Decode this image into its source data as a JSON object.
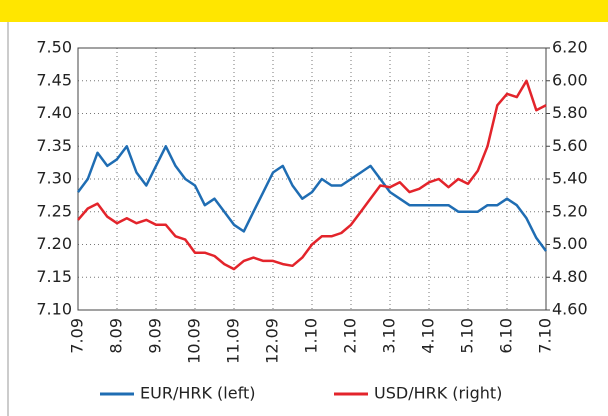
{
  "chart_data": {
    "type": "line",
    "x": [
      0,
      0.25,
      0.5,
      0.75,
      1,
      1.25,
      1.5,
      1.75,
      2,
      2.25,
      2.5,
      2.75,
      3,
      3.25,
      3.5,
      3.75,
      4,
      4.25,
      4.5,
      4.75,
      5,
      5.25,
      5.5,
      5.75,
      6,
      6.25,
      6.5,
      6.75,
      7,
      7.25,
      7.5,
      7.75,
      8,
      8.25,
      8.5,
      8.75,
      9,
      9.25,
      9.5,
      9.75,
      10,
      10.25,
      10.5,
      10.75,
      11,
      11.25,
      11.5,
      11.75,
      12
    ],
    "xlim": [
      0,
      12
    ],
    "xticks": [
      {
        "value": 0,
        "label": "7.09"
      },
      {
        "value": 1,
        "label": "8.09"
      },
      {
        "value": 2,
        "label": "9.09"
      },
      {
        "value": 3,
        "label": "10.09"
      },
      {
        "value": 4,
        "label": "11.09"
      },
      {
        "value": 5,
        "label": "12.09"
      },
      {
        "value": 6,
        "label": "1.10"
      },
      {
        "value": 7,
        "label": "2.10"
      },
      {
        "value": 8,
        "label": "3.10"
      },
      {
        "value": 9,
        "label": "4.10"
      },
      {
        "value": 10,
        "label": "5.10"
      },
      {
        "value": 11,
        "label": "6.10"
      },
      {
        "value": 12,
        "label": "7.10"
      }
    ],
    "ylim": [
      7.1,
      7.5
    ],
    "yticks": [
      {
        "value": 7.1,
        "label": "7.10"
      },
      7.15,
      {
        "value": 7.2,
        "label": "7.20"
      },
      7.25,
      {
        "value": 7.3,
        "label": "7.30"
      },
      7.35,
      {
        "value": 7.4,
        "label": "7.40"
      },
      7.45,
      {
        "value": 7.5,
        "label": "7.50"
      }
    ],
    "y2lim": [
      4.6,
      6.2
    ],
    "y2ticks": [
      {
        "value": 4.6,
        "label": "4.60"
      },
      {
        "value": 4.8,
        "label": "4.80"
      },
      {
        "value": 5.0,
        "label": "5.00"
      },
      {
        "value": 5.2,
        "label": "5.20"
      },
      {
        "value": 5.4,
        "label": "5.40"
      },
      {
        "value": 5.6,
        "label": "5.60"
      },
      {
        "value": 5.8,
        "label": "5.80"
      },
      {
        "value": 6.0,
        "label": "6.00"
      },
      {
        "value": 6.2,
        "label": "6.20"
      }
    ],
    "grid": true,
    "series": [
      {
        "name": "EUR/HRK (left)",
        "color": "#1f6db3",
        "values": [
          7.28,
          7.3,
          7.34,
          7.32,
          7.33,
          7.35,
          7.31,
          7.29,
          7.32,
          7.35,
          7.32,
          7.3,
          7.29,
          7.26,
          7.27,
          7.25,
          7.23,
          7.22,
          7.25,
          7.28,
          7.31,
          7.32,
          7.29,
          7.27,
          7.28,
          7.3,
          7.29,
          7.29,
          7.3,
          7.31,
          7.32,
          7.3,
          7.28,
          7.27,
          7.26,
          7.26,
          7.26,
          7.26,
          7.26,
          7.25,
          7.25,
          7.25,
          7.26,
          7.26,
          7.27,
          7.26,
          7.24,
          7.21,
          7.19
        ]
      },
      {
        "name": "USD/HRK (right)",
        "color": "#e3242b",
        "axis": "y2",
        "values": [
          5.15,
          5.22,
          5.25,
          5.17,
          5.13,
          5.16,
          5.13,
          5.15,
          5.12,
          5.12,
          5.05,
          5.03,
          4.95,
          4.95,
          4.93,
          4.88,
          4.85,
          4.9,
          4.92,
          4.9,
          4.9,
          4.88,
          4.87,
          4.92,
          5.0,
          5.05,
          5.05,
          5.07,
          5.12,
          5.2,
          5.28,
          5.36,
          5.35,
          5.38,
          5.32,
          5.34,
          5.38,
          5.4,
          5.35,
          5.4,
          5.37,
          5.45,
          5.6,
          5.85,
          5.92,
          5.9,
          6.0,
          5.82,
          5.85
        ]
      }
    ]
  }
}
